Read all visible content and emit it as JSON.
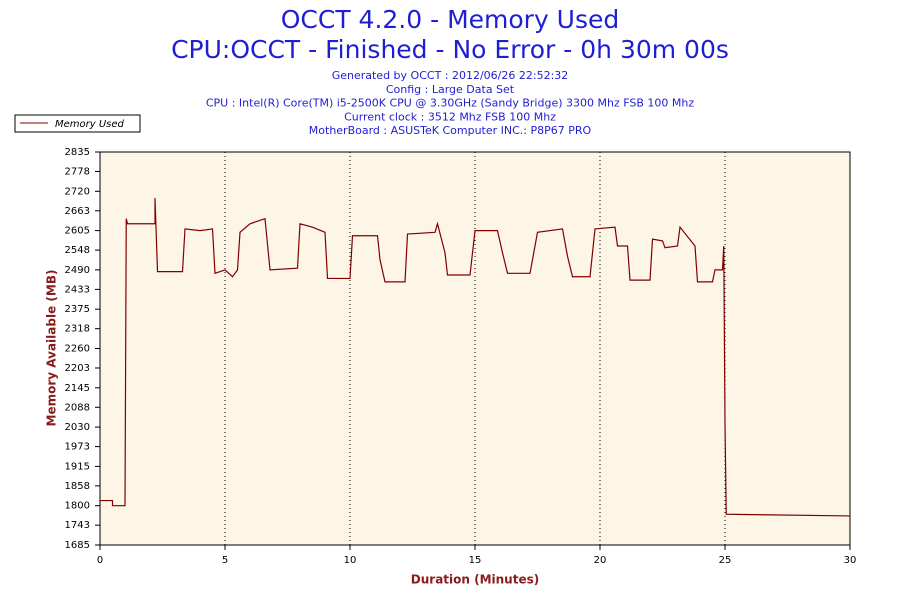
{
  "chart_data": {
    "type": "line",
    "title": "OCCT 4.2.0 - Memory Used",
    "subtitle": "CPU:OCCT - Finished - No Error - 0h 30m 00s",
    "info_lines": [
      "Generated by OCCT : 2012/06/26 22:52:32",
      "Config : Large Data Set",
      "CPU : Intel(R) Core(TM) i5-2500K CPU @ 3.30GHz (Sandy Bridge) 3300 Mhz FSB 100 Mhz",
      "Current clock : 3512 Mhz FSB 100 Mhz",
      "MotherBoard : ASUSTeK Computer INC.: P8P67 PRO"
    ],
    "x_label": "Duration (Minutes)",
    "y_label": "Memory Available (MB)",
    "x": [
      0,
      0.5,
      0.5,
      1.0,
      1.05,
      1.1,
      2.2,
      2.2,
      2.3,
      3.3,
      3.4,
      4.0,
      4.5,
      4.6,
      5.0,
      5.3,
      5.5,
      5.6,
      6.0,
      6.6,
      6.8,
      7.9,
      8.0,
      8.5,
      9.0,
      9.1,
      10.0,
      10.1,
      11.1,
      11.2,
      11.4,
      12.2,
      12.3,
      13.4,
      13.5,
      13.8,
      13.9,
      14.8,
      15.0,
      15.9,
      16.1,
      16.3,
      17.2,
      17.5,
      18.5,
      18.7,
      18.9,
      19.6,
      19.8,
      20.6,
      20.7,
      21.1,
      21.2,
      22.0,
      22.1,
      22.5,
      22.6,
      23.1,
      23.2,
      23.8,
      23.9,
      24.5,
      24.6,
      24.9,
      24.95,
      25.0,
      25.05,
      30
    ],
    "series": [
      {
        "name": "Memory Used",
        "color": "#800000",
        "values": [
          1815,
          1815,
          1800,
          1800,
          2640,
          2625,
          2625,
          2700,
          2485,
          2485,
          2610,
          2605,
          2610,
          2480,
          2490,
          2470,
          2490,
          2600,
          2625,
          2640,
          2490,
          2495,
          2625,
          2615,
          2600,
          2465,
          2465,
          2590,
          2590,
          2520,
          2455,
          2455,
          2595,
          2600,
          2625,
          2540,
          2475,
          2475,
          2605,
          2605,
          2540,
          2480,
          2480,
          2600,
          2610,
          2530,
          2470,
          2470,
          2610,
          2615,
          2560,
          2560,
          2460,
          2460,
          2580,
          2575,
          2555,
          2560,
          2615,
          2560,
          2455,
          2455,
          2490,
          2490,
          2560,
          2040,
          1775,
          1770
        ]
      }
    ],
    "xlim": [
      0,
      30
    ],
    "xticks": [
      0,
      5,
      10,
      15,
      20,
      25,
      30
    ],
    "ylim": [
      1685,
      2835
    ],
    "yticks": [
      1685,
      1743,
      1800,
      1858,
      1915,
      1973,
      2030,
      2088,
      2145,
      2203,
      2260,
      2318,
      2375,
      2433,
      2490,
      2548,
      2605,
      2663,
      2720,
      2778,
      2835
    ],
    "grid": "x",
    "legend": "top-left"
  }
}
